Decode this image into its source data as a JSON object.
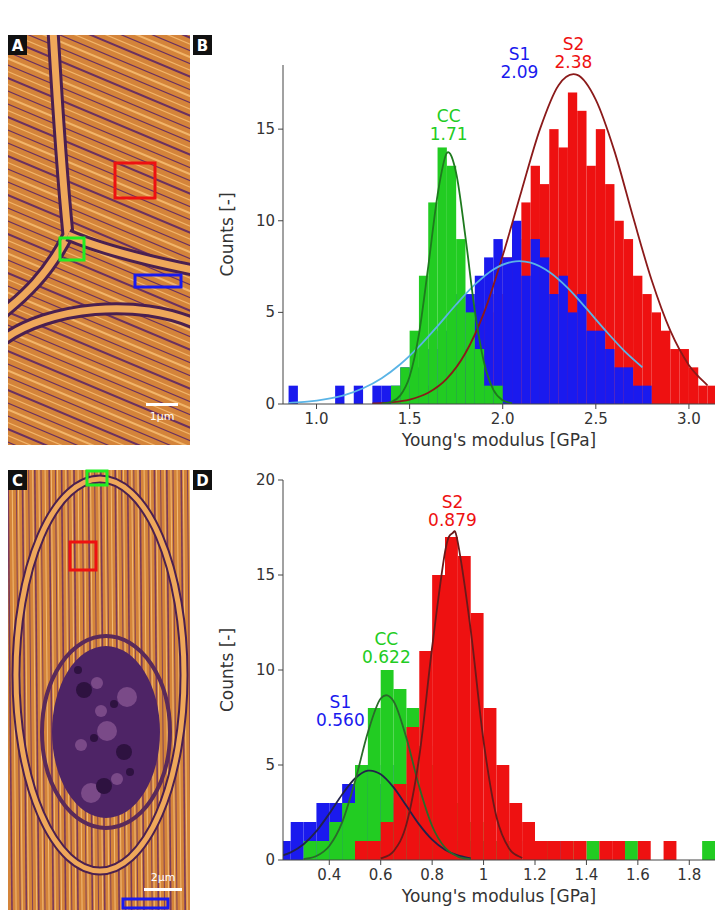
{
  "chart_data": [
    {
      "type": "histogram",
      "panel": "B",
      "xlabel": "Young's modulus [GPa]",
      "ylabel": "Counts [-]",
      "xlim": [
        0.82,
        3.14
      ],
      "xticks": [
        {
          "value": 1,
          "label": "1.0"
        },
        1.5,
        {
          "value": 2,
          "label": "2.0"
        },
        2.5,
        {
          "value": 3,
          "label": "3.0"
        }
      ],
      "ylim": [
        0,
        18.5
      ],
      "yticks": [
        0,
        5,
        10,
        15
      ],
      "series": [
        {
          "name": "S2",
          "peak": 2.38,
          "color": "#ee1111",
          "bins": [
            1.4,
            1.45,
            1.5,
            1.55,
            1.6,
            1.65,
            1.7,
            1.75,
            1.8,
            1.85,
            1.9,
            1.95,
            2,
            2.05,
            2.1,
            2.15,
            2.2,
            2.25,
            2.3,
            2.35,
            2.4,
            2.45,
            2.5,
            2.55,
            2.6,
            2.65,
            2.7,
            2.75,
            2.8,
            2.85,
            2.9,
            2.95,
            3,
            3.05,
            3.1,
            3.15
          ],
          "values": [
            0,
            1,
            0,
            1,
            1,
            1,
            2,
            2,
            3,
            4,
            5,
            6,
            8,
            9,
            11,
            13,
            12,
            15,
            14,
            17,
            16,
            13,
            15,
            12,
            10,
            9,
            7,
            6,
            5,
            4,
            3,
            3,
            2,
            1,
            1
          ],
          "fit": {
            "color": "#8b1a1a",
            "x": [
              1.3,
              1.4,
              1.5,
              1.6,
              1.7,
              1.8,
              1.9,
              2,
              2.1,
              2.2,
              2.3,
              2.4,
              2.5,
              2.6,
              2.7,
              2.8,
              2.9,
              3,
              3.1
            ],
            "values": [
              0.03,
              0.09,
              0.24,
              0.61,
              1.38,
              2.78,
              5,
              8.1,
              11.6,
              15,
              17.4,
              17.96,
              16.6,
              13.8,
              10.2,
              6.75,
              4,
              2.12,
              1.01
            ]
          }
        },
        {
          "name": "S1",
          "peak": 2.09,
          "color": "#1a1aee",
          "bins": [
            0.85,
            0.9,
            0.95,
            1,
            1.05,
            1.1,
            1.15,
            1.2,
            1.25,
            1.3,
            1.35,
            1.4,
            1.45,
            1.5,
            1.55,
            1.6,
            1.65,
            1.7,
            1.75,
            1.8,
            1.85,
            1.9,
            1.95,
            2,
            2.05,
            2.1,
            2.15,
            2.2,
            2.25,
            2.3,
            2.35,
            2.4,
            2.45,
            2.5,
            2.55,
            2.6,
            2.65,
            2.7,
            2.75,
            2.8
          ],
          "values": [
            1,
            0,
            0,
            0,
            0,
            1,
            0,
            1,
            0,
            1,
            1,
            1,
            2,
            2,
            3,
            3,
            4,
            5,
            6,
            6,
            7,
            8,
            9,
            8,
            10,
            7,
            9,
            8,
            6,
            7,
            5,
            6,
            4,
            4,
            3,
            2,
            2,
            1,
            1
          ],
          "fit": {
            "color": "#5ab4e6",
            "x": [
              0.85,
              0.95,
              1.05,
              1.15,
              1.25,
              1.35,
              1.45,
              1.55,
              1.65,
              1.75,
              1.85,
              1.95,
              2.05,
              2.15,
              2.25,
              2.35,
              2.45,
              2.55,
              2.65,
              2.75
            ],
            "values": [
              0.06,
              0.13,
              0.27,
              0.49,
              0.86,
              1.41,
              2.17,
              3.13,
              4.25,
              5.43,
              6.51,
              7.34,
              7.76,
              7.71,
              7.2,
              6.32,
              5.2,
              4.03,
              2.93,
              2
            ]
          }
        },
        {
          "name": "CC",
          "peak": 1.71,
          "color": "#22cc22",
          "bins": [
            1.4,
            1.45,
            1.5,
            1.55,
            1.6,
            1.65,
            1.7,
            1.75,
            1.8,
            1.85,
            1.9,
            1.95,
            2
          ],
          "values": [
            1,
            2,
            4,
            7,
            11,
            14,
            13,
            9,
            5,
            3,
            1,
            1
          ],
          "fit": {
            "color": "#1e7a1e",
            "x": [
              1.35,
              1.4,
              1.45,
              1.5,
              1.55,
              1.6,
              1.65,
              1.7,
              1.75,
              1.8,
              1.85,
              1.9,
              1.95,
              2,
              2.05
            ],
            "values": [
              0.02,
              0.11,
              0.47,
              1.5,
              3.8,
              7.5,
              11.4,
              13.7,
              12.6,
              9.1,
              5.1,
              2.25,
              0.77,
              0.2,
              0.04
            ]
          }
        }
      ]
    },
    {
      "type": "histogram",
      "panel": "D",
      "xlabel": "Young's modulus [GPa]",
      "ylabel": "Counts [-]",
      "xlim": [
        0.22,
        1.9
      ],
      "xticks": [
        0.4,
        0.6,
        0.8,
        1,
        1.2,
        1.4,
        1.6,
        1.8
      ],
      "ylim": [
        0,
        20
      ],
      "yticks": [
        0,
        5,
        10,
        15,
        20
      ],
      "series": [
        {
          "name": "S1",
          "peak": {
            "value": 0.56,
            "label": "0.560"
          },
          "color": "#1a1aee",
          "bins": [
            0.2,
            0.25,
            0.3,
            0.35,
            0.4,
            0.45,
            0.5,
            0.55,
            0.6,
            0.65,
            0.7,
            0.75,
            0.8,
            0.85,
            0.9,
            0.95,
            1,
            1.05,
            1.1,
            1.15,
            1.2,
            1.25,
            1.3
          ],
          "values": [
            1,
            2,
            2,
            3,
            3,
            4,
            5,
            4,
            5,
            3,
            3,
            2,
            2,
            1,
            1,
            1,
            1,
            0,
            1,
            0,
            0,
            1
          ],
          "fit": {
            "color": "#22224a",
            "x": [
              0.2,
              0.25,
              0.3,
              0.35,
              0.4,
              0.45,
              0.5,
              0.55,
              0.6,
              0.65,
              0.7,
              0.75,
              0.8,
              0.85,
              0.9,
              0.95
            ],
            "values": [
              0.17,
              0.4,
              0.83,
              1.52,
              2.44,
              3.45,
              4.29,
              4.7,
              4.51,
              3.82,
              2.85,
              1.86,
              1.07,
              0.54,
              0.24,
              0.09
            ]
          }
        },
        {
          "name": "CC",
          "peak": 0.622,
          "color": "#22cc22",
          "bins": [
            0.25,
            0.3,
            0.35,
            0.4,
            0.45,
            0.5,
            0.55,
            0.6,
            0.65,
            0.7,
            0.75,
            0.8,
            0.85,
            0.9,
            0.95,
            1,
            1.05,
            1.1,
            1.15,
            1.2,
            1.25,
            1.3,
            1.35,
            1.4,
            1.45,
            1.5,
            1.55,
            1.6,
            1.65,
            1.7,
            1.75,
            1.8,
            1.85,
            1.9
          ],
          "values": [
            0,
            1,
            1,
            2,
            3,
            5,
            8,
            10,
            9,
            8,
            6,
            5,
            3,
            2,
            2,
            1,
            1,
            1,
            0,
            1,
            0,
            1,
            0,
            1,
            0,
            0,
            1,
            0,
            0,
            0,
            0,
            0,
            1
          ],
          "fit": {
            "color": "#2a6a2a",
            "x": [
              0.3,
              0.35,
              0.4,
              0.45,
              0.5,
              0.55,
              0.6,
              0.65,
              0.7,
              0.75,
              0.8,
              0.85,
              0.9,
              0.95
            ],
            "values": [
              0.05,
              0.21,
              0.74,
              1.98,
              4.13,
              6.71,
              8.5,
              8.36,
              6.42,
              3.84,
              1.79,
              0.65,
              0.18,
              0.04
            ]
          }
        },
        {
          "name": "S2",
          "peak": 0.879,
          "color": "#ee1111",
          "bins": [
            0.45,
            0.5,
            0.55,
            0.6,
            0.65,
            0.7,
            0.75,
            0.8,
            0.85,
            0.9,
            0.95,
            1,
            1.05,
            1.1,
            1.15,
            1.2,
            1.25,
            1.3,
            1.35,
            1.4,
            1.45,
            1.5,
            1.55,
            1.6,
            1.65,
            1.7,
            1.75
          ],
          "values": [
            0,
            1,
            1,
            2,
            4,
            7,
            11,
            15,
            17,
            16,
            13,
            8,
            5,
            3,
            2,
            1,
            1,
            1,
            1,
            0,
            1,
            1,
            0,
            1,
            0,
            1
          ],
          "fit": {
            "color": "#6a1a1a",
            "x": [
              0.6,
              0.65,
              0.7,
              0.75,
              0.8,
              0.85,
              0.879,
              0.9,
              0.95,
              1,
              1.05,
              1.1,
              1.15
            ],
            "values": [
              0.08,
              0.46,
              1.88,
              5.45,
              11.2,
              16.2,
              17.2,
              16.7,
              12.1,
              6.26,
              2.28,
              0.59,
              0.11
            ]
          }
        }
      ]
    }
  ],
  "images": [
    {
      "panel": "A",
      "scale_bar": "1µm",
      "colors": [
        "#22ee22",
        "#ee1111",
        "#1a1aee"
      ]
    },
    {
      "panel": "C",
      "scale_bar": "2µm",
      "colors": [
        "#22ee22",
        "#ee1111",
        "#1a1aee"
      ]
    }
  ]
}
